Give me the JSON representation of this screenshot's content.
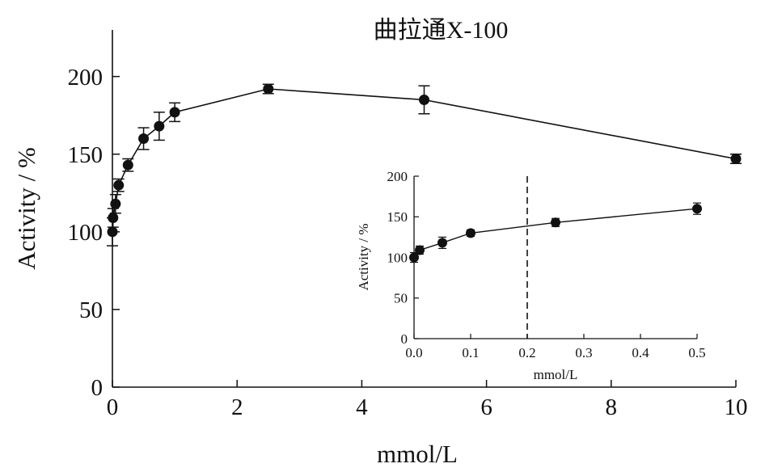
{
  "chart_data": [
    {
      "type": "line",
      "title": "曲拉通X-100",
      "xlabel": "mmol/L",
      "ylabel": "Activity / %",
      "xlim": [
        0,
        10
      ],
      "ylim": [
        0,
        230
      ],
      "xticks": [
        0,
        2,
        4,
        6,
        8,
        10
      ],
      "xtick_labels": [
        "0",
        "2",
        "4",
        "6",
        "8",
        "10"
      ],
      "yticks": [
        0,
        50,
        100,
        150,
        200
      ],
      "ytick_labels": [
        "0",
        "50",
        "100",
        "150",
        "200"
      ],
      "grid": false,
      "series": [
        {
          "x": [
            0,
            0.01,
            0.05,
            0.1,
            0.25,
            0.5,
            0.75,
            1.0,
            2.5,
            5.0,
            10.0
          ],
          "y": [
            100,
            109,
            118,
            130,
            143,
            160,
            168,
            177,
            192,
            185,
            147
          ],
          "err": [
            9,
            6,
            6,
            4,
            4,
            7,
            9,
            6,
            3,
            9,
            3
          ]
        }
      ]
    },
    {
      "type": "line",
      "title": "",
      "xlabel": "mmol/L",
      "ylabel": "Activity / %",
      "xlim": [
        0,
        0.5
      ],
      "ylim": [
        0,
        200
      ],
      "xticks": [
        0,
        0.1,
        0.2,
        0.3,
        0.4,
        0.5
      ],
      "xtick_labels": [
        "0.0",
        "0.1",
        "0.2",
        "0.3",
        "0.4",
        "0.5"
      ],
      "yticks": [
        0,
        50,
        100,
        150,
        200
      ],
      "ytick_labels": [
        "0",
        "50",
        "100",
        "150",
        "200"
      ],
      "grid": false,
      "reference_line": {
        "x": 0.2,
        "style": "dashed"
      },
      "series": [
        {
          "x": [
            0,
            0.01,
            0.05,
            0.1,
            0.25,
            0.5
          ],
          "y": [
            100,
            109,
            118,
            130,
            143,
            160
          ],
          "err": [
            6,
            5,
            7,
            4,
            5,
            7
          ]
        }
      ]
    }
  ]
}
